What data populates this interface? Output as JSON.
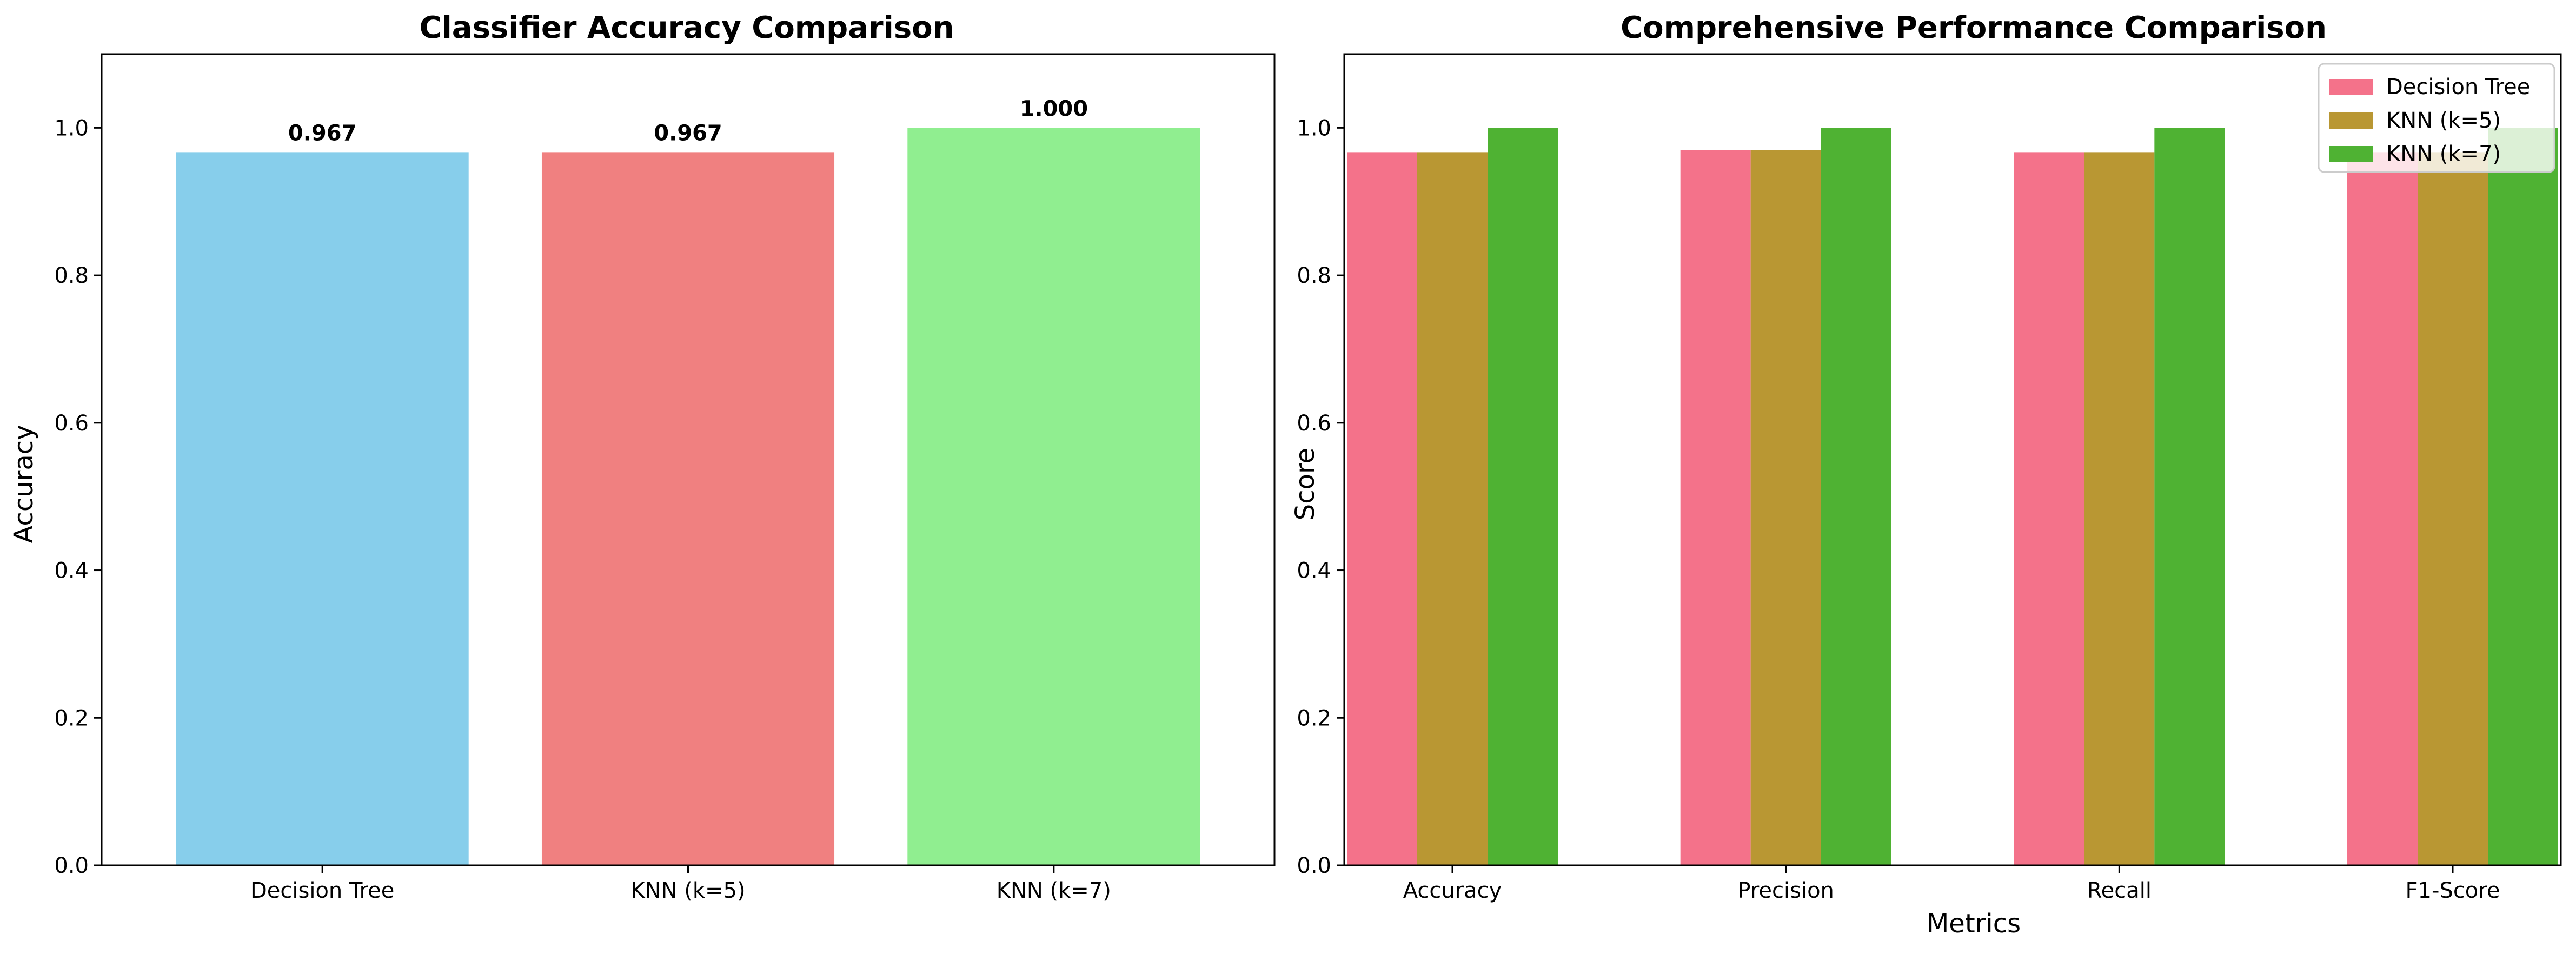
{
  "chart_data": [
    {
      "type": "bar",
      "title": "Classifier Accuracy Comparison",
      "xlabel": "",
      "ylabel": "Accuracy",
      "ylim": [
        0,
        1.1
      ],
      "yticks": [
        "0.0",
        "0.2",
        "0.4",
        "0.6",
        "0.8",
        "1.0"
      ],
      "categories": [
        "Decision Tree",
        "KNN (k=5)",
        "KNN (k=7)"
      ],
      "values": [
        0.967,
        0.967,
        1.0
      ],
      "value_labels": [
        "0.967",
        "0.967",
        "1.000"
      ],
      "colors": [
        "#87ceeb",
        "#f08080",
        "#90ee90"
      ],
      "grid": false
    },
    {
      "type": "bar",
      "title": "Comprehensive Performance Comparison",
      "xlabel": "Metrics",
      "ylabel": "Score",
      "ylim": [
        0,
        1.1
      ],
      "yticks": [
        "0.0",
        "0.2",
        "0.4",
        "0.6",
        "0.8",
        "1.0"
      ],
      "categories": [
        "Accuracy",
        "Precision",
        "Recall",
        "F1-Score"
      ],
      "series": [
        {
          "name": "Decision Tree",
          "color": "#f4728a",
          "values": [
            0.967,
            0.97,
            0.967,
            0.967
          ]
        },
        {
          "name": "KNN (k=5)",
          "color": "#b99733",
          "values": [
            0.967,
            0.97,
            0.967,
            0.967
          ]
        },
        {
          "name": "KNN (k=7)",
          "color": "#4fb233",
          "values": [
            1.0,
            1.0,
            1.0,
            1.0
          ]
        }
      ],
      "legend": "top-right",
      "grid": false
    }
  ]
}
